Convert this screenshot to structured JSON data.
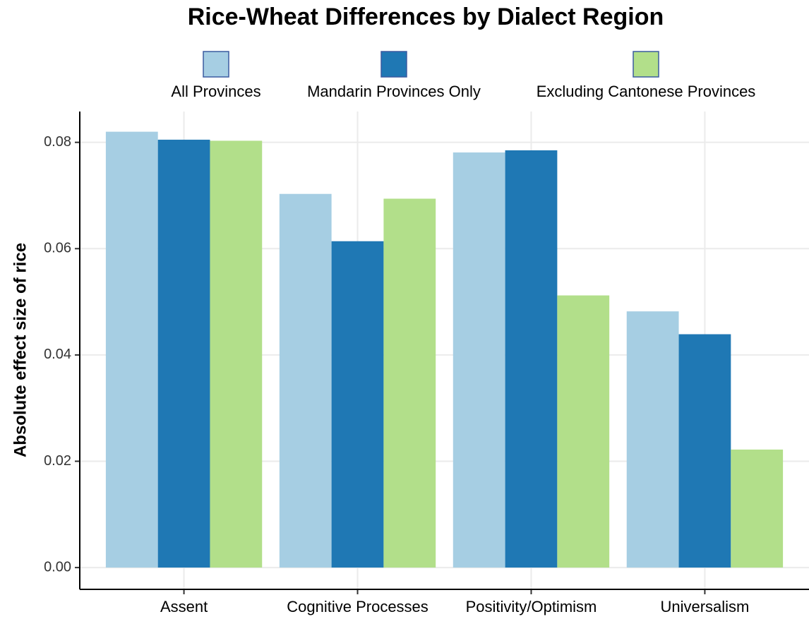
{
  "chart_data": {
    "type": "bar",
    "title": "Rice-Wheat Differences by Dialect Region",
    "y_label": "Absolute effect size of rice",
    "categories": [
      "Assent",
      "Cognitive Processes",
      "Positivity/Optimism",
      "Universalism"
    ],
    "series": [
      {
        "name": "All Provinces",
        "color": "#a6cee3",
        "values": [
          0.082,
          0.0703,
          0.0781,
          0.0482
        ]
      },
      {
        "name": "Mandarin Provinces Only",
        "color": "#1f78b4",
        "values": [
          0.0805,
          0.0614,
          0.0785,
          0.0439
        ]
      },
      {
        "name": "Excluding Cantonese Provinces",
        "color": "#b2df8a",
        "values": [
          0.0803,
          0.0694,
          0.0512,
          0.0222
        ]
      }
    ],
    "ylim": [
      -0.0041,
      0.0858
    ],
    "yticks": [
      {
        "value": 0,
        "label": "0.00"
      },
      0.02,
      0.04,
      0.06,
      0.08
    ],
    "grid": true,
    "legend": "top"
  }
}
